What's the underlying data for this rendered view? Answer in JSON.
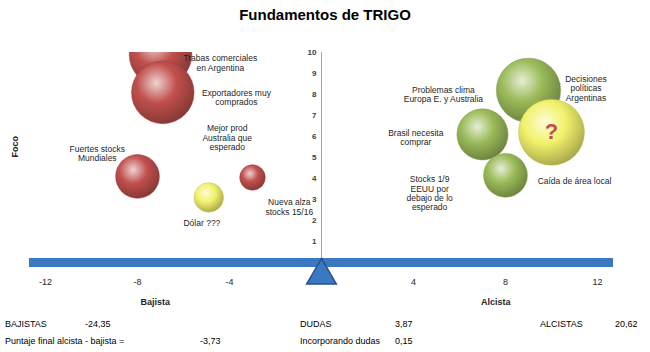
{
  "chart_data": {
    "type": "bubble",
    "title": "Fundamentos de TRIGO",
    "y_label": "Foco",
    "x_side_labels": [
      "Bajista",
      "Alcista"
    ],
    "xlim": [
      -12,
      12
    ],
    "xticks": [
      -12,
      -8,
      -4,
      4,
      8,
      12
    ],
    "ylim": [
      0,
      10
    ],
    "yticks": [
      1,
      2,
      3,
      4,
      5,
      6,
      7,
      8,
      9,
      10
    ],
    "bubbles": [
      {
        "x": -7.0,
        "y": 9.9,
        "size": 9,
        "color": "#c0504d"
      },
      {
        "x": -6.9,
        "y": 8.1,
        "size": 9,
        "color": "#c0504d"
      },
      {
        "x": -8.0,
        "y": 4.1,
        "size": 4.4,
        "color": "#c0504d"
      },
      {
        "x": -3.0,
        "y": 4.05,
        "size": 1.5,
        "color": "#c0504d"
      },
      {
        "x": -4.9,
        "y": 3.1,
        "size": 2,
        "color": "#f2f26b"
      },
      {
        "x": 9.0,
        "y": 8.2,
        "size": 9.5,
        "color": "#9bbb59"
      },
      {
        "x": 7.0,
        "y": 6.1,
        "size": 6,
        "color": "#9bbb59"
      },
      {
        "x": 8.0,
        "y": 4.15,
        "size": 4.4,
        "color": "#9bbb59"
      },
      {
        "x": 10.0,
        "y": 6.2,
        "size": 10,
        "color": "#f2f26b"
      }
    ],
    "bubble_text": {
      "text": "?",
      "x": 10.0,
      "y": 6.2,
      "color": "#c0504d"
    },
    "annotations": [
      {
        "text": "Trabas comerciales\nen Argentina",
        "x": -4.4,
        "y": 9.5,
        "color": "#c0504d"
      },
      {
        "text": "Exportadores muy\ncomprados",
        "x": -3.7,
        "y": 7.85,
        "color": "#c0504d"
      },
      {
        "text": "Mejor prod\nAustralia que\nesperado",
        "x": -4.1,
        "y": 5.95,
        "color": "#c0504d"
      },
      {
        "text": "Fuertes stocks\nMundiales",
        "x": -9.75,
        "y": 5.2,
        "color": "#c0504d"
      },
      {
        "text": "Nueva alza\nstocks 15/16",
        "x": -1.4,
        "y": 2.65,
        "color": "#c0504d"
      },
      {
        "text": "Dólar ???",
        "x": -5.2,
        "y": 1.9,
        "color": "#e8e030"
      },
      {
        "text": "Problemas clima\nEuropa E. y Australia",
        "x": 5.3,
        "y": 8.0,
        "color": "#9bbb59"
      },
      {
        "text": "Brasil necesita\ncomprar",
        "x": 4.1,
        "y": 5.95,
        "color": "#9bbb59"
      },
      {
        "text": "Stocks 1/9\nEEUU por\ndebajo de lo\nesperado",
        "x": 4.7,
        "y": 3.3,
        "color": "#9bbb59"
      },
      {
        "text": "Decisiones\npolíticas\nArgentinas",
        "x": 11.5,
        "y": 8.3,
        "color": "#e8e030"
      },
      {
        "text": "Caída de área local",
        "x": 11.0,
        "y": 3.9,
        "color": "#9bbb59"
      }
    ],
    "summary": [
      [
        {
          "name": "BAJISTAS",
          "value": "-24,35"
        },
        {
          "name": "DUDAS",
          "value": "3,87"
        },
        {
          "name": "ALCISTAS",
          "value": "20,62"
        }
      ],
      [
        {
          "name": "Puntaje final alcista - bajista =",
          "value": "-3,73"
        },
        {
          "name": "Incorporando dudas",
          "value": "0,15"
        }
      ]
    ]
  }
}
